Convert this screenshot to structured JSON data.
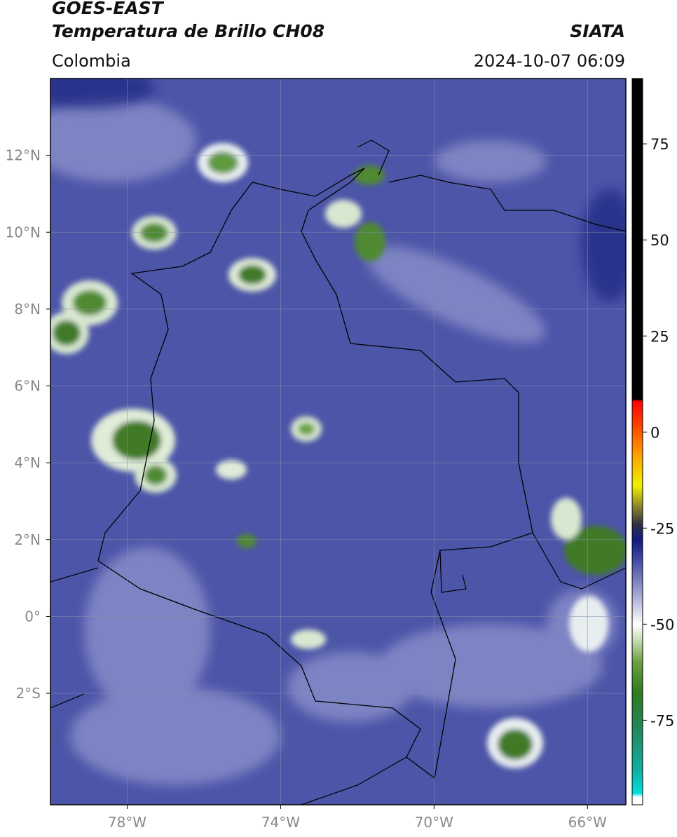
{
  "header": {
    "title_line1": "GOES-EAST",
    "title_line2": "Temperatura de Brillo CH08",
    "source": "SIATA",
    "region": "Colombia",
    "datetime": "2024-10-07 06:09"
  },
  "map": {
    "lonlim": [
      -80,
      -65
    ],
    "latlim": [
      -4.9,
      14
    ],
    "lon_ticks": [
      {
        "value": -78,
        "label": "78°W"
      },
      {
        "value": -74,
        "label": "74°W"
      },
      {
        "value": -70,
        "label": "70°W"
      },
      {
        "value": -66,
        "label": "66°W"
      }
    ],
    "lat_ticks": [
      {
        "value": 12,
        "label": "12°N"
      },
      {
        "value": 10,
        "label": "10°N"
      },
      {
        "value": 8,
        "label": "8°N"
      },
      {
        "value": 6,
        "label": "6°N"
      },
      {
        "value": 4,
        "label": "4°N"
      },
      {
        "value": 2,
        "label": "2°N"
      },
      {
        "value": 0,
        "label": "0°"
      },
      {
        "value": -2,
        "label": "2°S"
      }
    ],
    "grid": true
  },
  "colorbar": {
    "lim": [
      -97,
      92
    ],
    "ticks": [
      75,
      50,
      25,
      0,
      -25,
      -50,
      -75
    ],
    "colormap": [
      [
        -97,
        "#ffffff"
      ],
      [
        -95,
        "#ffffff"
      ],
      [
        -94,
        "#00e0e0"
      ],
      [
        -88,
        "#10b0a0"
      ],
      [
        -78,
        "#208a60"
      ],
      [
        -68,
        "#2f7a20"
      ],
      [
        -60,
        "#6aa040"
      ],
      [
        -53,
        "#d8e8c8"
      ],
      [
        -50,
        "#ffffff"
      ],
      [
        -42,
        "#a0a4d0"
      ],
      [
        -34,
        "#4a50a8"
      ],
      [
        -28,
        "#101a80"
      ],
      [
        -24,
        "#303040"
      ],
      [
        -20,
        "#807830"
      ],
      [
        -14,
        "#f0f000"
      ],
      [
        -6,
        "#ffa000"
      ],
      [
        2,
        "#ff4000"
      ],
      [
        8,
        "#ff0000"
      ],
      [
        8.5,
        "#000000"
      ],
      [
        92,
        "#000000"
      ]
    ]
  }
}
